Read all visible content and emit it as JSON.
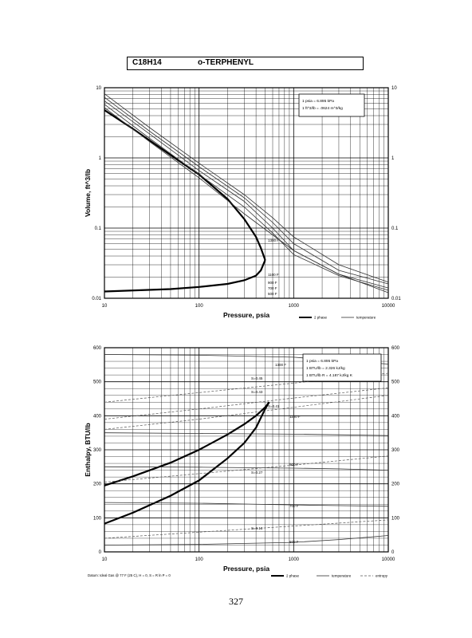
{
  "header": {
    "formula": "C18H14",
    "name": "o-TERPHENYL"
  },
  "page_number": "327",
  "chart_data": [
    {
      "type": "line",
      "xlabel": "Pressure,  psia",
      "ylabel": "Volume,  ft^3/lb",
      "xscale": "log",
      "yscale": "log",
      "xlim": [
        10,
        10000
      ],
      "ylim": [
        0.01,
        10
      ],
      "x_ticks": [
        "10",
        "100",
        "1000",
        "10000"
      ],
      "y_ticks": [
        "0.01",
        "0.1",
        "1",
        "10"
      ],
      "grid": true,
      "conversion": [
        "1 psia  =  6.895 kPa",
        "1 ft^3/lb  =  .0624 m^3/kg"
      ],
      "legend": [
        "2 phase",
        "temperature"
      ],
      "legend_placement": "bottom-right",
      "curve_labels": [
        "1300 F",
        "1100 F",
        "900 F",
        "700 F",
        "500 F"
      ],
      "series": [
        {
          "name": "2 phase",
          "kind": "saturated-vapor",
          "x": [
            10,
            20,
            50,
            100,
            200,
            300,
            400,
            450,
            500
          ],
          "y": [
            4.8,
            2.6,
            1.1,
            0.58,
            0.26,
            0.135,
            0.075,
            0.052,
            0.035
          ]
        },
        {
          "name": "2 phase",
          "kind": "saturated-liquid",
          "x": [
            10,
            50,
            100,
            200,
            300,
            400,
            450,
            500
          ],
          "y": [
            0.0125,
            0.0135,
            0.0145,
            0.016,
            0.018,
            0.021,
            0.025,
            0.035
          ]
        },
        {
          "name": "temperature",
          "label": "500 F",
          "x": [
            10,
            30,
            100,
            300,
            1000,
            3000,
            10000
          ],
          "y": [
            5.2,
            1.7,
            0.52,
            0.16,
            0.048,
            0.022,
            0.012
          ]
        },
        {
          "name": "temperature",
          "label": "700 F",
          "x": [
            10,
            30,
            100,
            300,
            600,
            1000,
            3000,
            10000
          ],
          "y": [
            5.8,
            1.9,
            0.58,
            0.2,
            0.085,
            0.042,
            0.021,
            0.013
          ]
        },
        {
          "name": "temperature",
          "label": "900 F",
          "x": [
            10,
            30,
            100,
            300,
            600,
            1000,
            3000,
            10000
          ],
          "y": [
            6.5,
            2.2,
            0.66,
            0.24,
            0.1,
            0.048,
            0.022,
            0.014
          ]
        },
        {
          "name": "temperature",
          "label": "1100 F",
          "x": [
            10,
            30,
            100,
            300,
            600,
            1000,
            3000,
            10000
          ],
          "y": [
            7.3,
            2.4,
            0.75,
            0.27,
            0.12,
            0.06,
            0.025,
            0.016
          ]
        },
        {
          "name": "temperature",
          "label": "1300 F",
          "x": [
            10,
            30,
            100,
            300,
            600,
            1000,
            3000,
            10000
          ],
          "y": [
            8.2,
            2.7,
            0.84,
            0.3,
            0.14,
            0.075,
            0.03,
            0.017
          ]
        }
      ]
    },
    {
      "type": "line",
      "xlabel": "Pressure,  psia",
      "ylabel": "Enthalpy,  BTU/lb",
      "xscale": "log",
      "yscale": "linear",
      "xlim": [
        10,
        10000
      ],
      "ylim": [
        0,
        600
      ],
      "x_ticks": [
        "10",
        "100",
        "1000",
        "10000"
      ],
      "y_ticks": [
        "0",
        "100",
        "200",
        "300",
        "400",
        "500",
        "600"
      ],
      "grid": true,
      "conversion": [
        "1 psia  =  6.895 kPa",
        "1 BTU/lb  =  2.326 kJ/kg",
        "1 BTU/lb R  =  4.187 kJ/kg K"
      ],
      "legend": [
        "2 phase",
        "temperature",
        "entropy"
      ],
      "legend_placement": "bottom-right",
      "footnote": "Datum: Ideal Gas @ 77 F (25 C),  H = 0,  S = R ln P = 0",
      "curve_labels": [
        "1300 F",
        "1100 F",
        "900 F",
        "700 F",
        "500 F"
      ],
      "entropy_labels": [
        "S=0.45",
        "S=0.43",
        "S=0.41",
        "S=0.27",
        "S=0.13"
      ],
      "series": [
        {
          "name": "2 phase",
          "kind": "saturated-vapor",
          "x": [
            10,
            20,
            50,
            100,
            200,
            300,
            400,
            500,
            550
          ],
          "y": [
            195,
            222,
            262,
            300,
            345,
            375,
            400,
            425,
            440
          ]
        },
        {
          "name": "2 phase",
          "kind": "saturated-liquid",
          "x": [
            10,
            20,
            50,
            100,
            200,
            300,
            400,
            500,
            550
          ],
          "y": [
            83,
            115,
            165,
            210,
            275,
            320,
            365,
            420,
            440
          ]
        },
        {
          "name": "temperature",
          "label": "500 F",
          "x": [
            10,
            100,
            1000,
            3000,
            10000
          ],
          "y": [
            20,
            22,
            28,
            36,
            48
          ]
        },
        {
          "name": "temperature",
          "label": "700 F",
          "x": [
            10,
            100,
            1000,
            3000,
            10000
          ],
          "y": [
            145,
            143,
            138,
            136,
            134
          ]
        },
        {
          "name": "temperature",
          "label": "900 F",
          "x": [
            10,
            100,
            1000,
            3000,
            10000
          ],
          "y": [
            250,
            249,
            246,
            244,
            240
          ]
        },
        {
          "name": "temperature",
          "label": "1100 F",
          "x": [
            10,
            100,
            1000,
            3000,
            10000
          ],
          "y": [
            350,
            348,
            346,
            344,
            342
          ]
        },
        {
          "name": "temperature",
          "label": "1300 F",
          "x": [
            10,
            100,
            1000,
            3000,
            10000
          ],
          "y": [
            580,
            578,
            572,
            562,
            552
          ]
        },
        {
          "name": "entropy",
          "label": "S=0.45",
          "x": [
            10,
            100,
            1000,
            10000
          ],
          "y": [
            440,
            468,
            496,
            525
          ]
        },
        {
          "name": "entropy",
          "label": "S=0.43",
          "x": [
            10,
            100,
            1000,
            10000
          ],
          "y": [
            390,
            420,
            452,
            482
          ]
        },
        {
          "name": "entropy",
          "label": "S=0.41",
          "x": [
            10,
            100,
            1000,
            10000
          ],
          "y": [
            360,
            390,
            425,
            460
          ]
        },
        {
          "name": "entropy",
          "label": "S=0.27",
          "x": [
            10,
            100,
            1000,
            10000
          ],
          "y": [
            205,
            230,
            255,
            282
          ]
        },
        {
          "name": "entropy",
          "label": "S=0.13",
          "x": [
            10,
            100,
            1000,
            10000
          ],
          "y": [
            40,
            58,
            76,
            94
          ]
        }
      ]
    }
  ]
}
